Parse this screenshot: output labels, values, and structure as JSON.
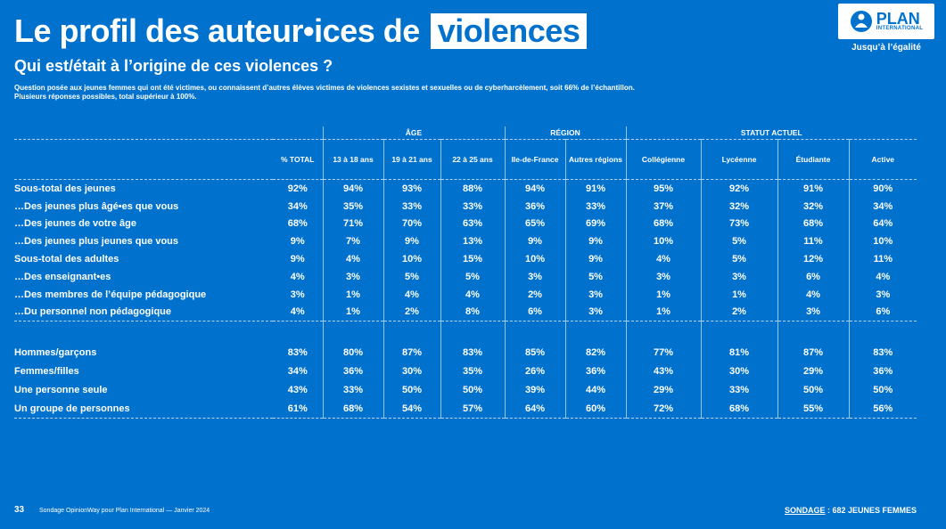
{
  "header": {
    "title": "Le profil des auteur•ices de",
    "title_highlight": "violences",
    "subtitle": "Qui est/était à l’origine de ces violences ?",
    "question": "Question posée aux jeunes femmes qui ont été victimes, ou connaissent d’autres élèves victimes de violences sexistes et sexuelles ou de cyberharcèlement, soit 66% de l’échantillon. Plusieurs réponses possibles, total supérieur à 100%."
  },
  "brand": {
    "logo_word": "PLAN",
    "logo_sub": "INTERNATIONAL",
    "tagline": "Jusqu’à l’égalité",
    "color_primary": "#0072CE",
    "color_white": "#FFFFFF"
  },
  "table": {
    "groups": [
      "ÂGE",
      "RÉGION",
      "STATUT ACTUEL"
    ],
    "columns": [
      "% TOTAL",
      "13 à 18 ans",
      "19 à 21 ans",
      "22 à 25 ans",
      "Ile-de-France",
      "Autres régions",
      "Collégienne",
      "Lycéenne",
      "Étudiante",
      "Active"
    ],
    "rows": [
      {
        "label": "Sous-total des jeunes",
        "values": [
          "92%",
          "94%",
          "93%",
          "88%",
          "94%",
          "91%",
          "95%",
          "92%",
          "91%",
          "90%"
        ]
      },
      {
        "label": "…Des jeunes plus âgé•es que vous",
        "values": [
          "34%",
          "35%",
          "33%",
          "33%",
          "36%",
          "33%",
          "37%",
          "32%",
          "32%",
          "34%"
        ]
      },
      {
        "label": "…Des jeunes de votre âge",
        "values": [
          "68%",
          "71%",
          "70%",
          "63%",
          "65%",
          "69%",
          "68%",
          "73%",
          "68%",
          "64%"
        ]
      },
      {
        "label": "…Des jeunes plus jeunes que vous",
        "values": [
          "9%",
          "7%",
          "9%",
          "13%",
          "9%",
          "9%",
          "10%",
          "5%",
          "11%",
          "10%"
        ]
      },
      {
        "label": "Sous-total des adultes",
        "values": [
          "9%",
          "4%",
          "10%",
          "15%",
          "10%",
          "9%",
          "4%",
          "5%",
          "12%",
          "11%"
        ]
      },
      {
        "label": "…Des enseignant•es",
        "values": [
          "4%",
          "3%",
          "5%",
          "5%",
          "3%",
          "5%",
          "3%",
          "3%",
          "6%",
          "4%"
        ]
      },
      {
        "label": "…Des membres de l’équipe pédagogique",
        "values": [
          "3%",
          "1%",
          "4%",
          "4%",
          "2%",
          "3%",
          "1%",
          "1%",
          "4%",
          "3%"
        ]
      },
      {
        "label": "…Du personnel non pédagogique",
        "values": [
          "4%",
          "1%",
          "2%",
          "8%",
          "6%",
          "3%",
          "1%",
          "2%",
          "3%",
          "6%"
        ]
      }
    ],
    "rows2": [
      {
        "label": "Hommes/garçons",
        "values": [
          "83%",
          "80%",
          "87%",
          "83%",
          "85%",
          "82%",
          "77%",
          "81%",
          "87%",
          "83%"
        ]
      },
      {
        "label": "Femmes/filles",
        "values": [
          "34%",
          "36%",
          "30%",
          "35%",
          "26%",
          "36%",
          "43%",
          "30%",
          "29%",
          "36%"
        ]
      },
      {
        "label": "Une personne seule",
        "values": [
          "43%",
          "33%",
          "50%",
          "50%",
          "39%",
          "44%",
          "29%",
          "33%",
          "50%",
          "50%"
        ]
      },
      {
        "label": "Un groupe de personnes",
        "values": [
          "61%",
          "68%",
          "54%",
          "57%",
          "64%",
          "60%",
          "72%",
          "68%",
          "55%",
          "56%"
        ]
      }
    ]
  },
  "footer": {
    "page_number": "33",
    "source": "Sondage OpinionWay pour Plan International — Janvier 2024",
    "sample_label": "SONDAGE",
    "sample_text": " : 682 JEUNES FEMMES"
  }
}
